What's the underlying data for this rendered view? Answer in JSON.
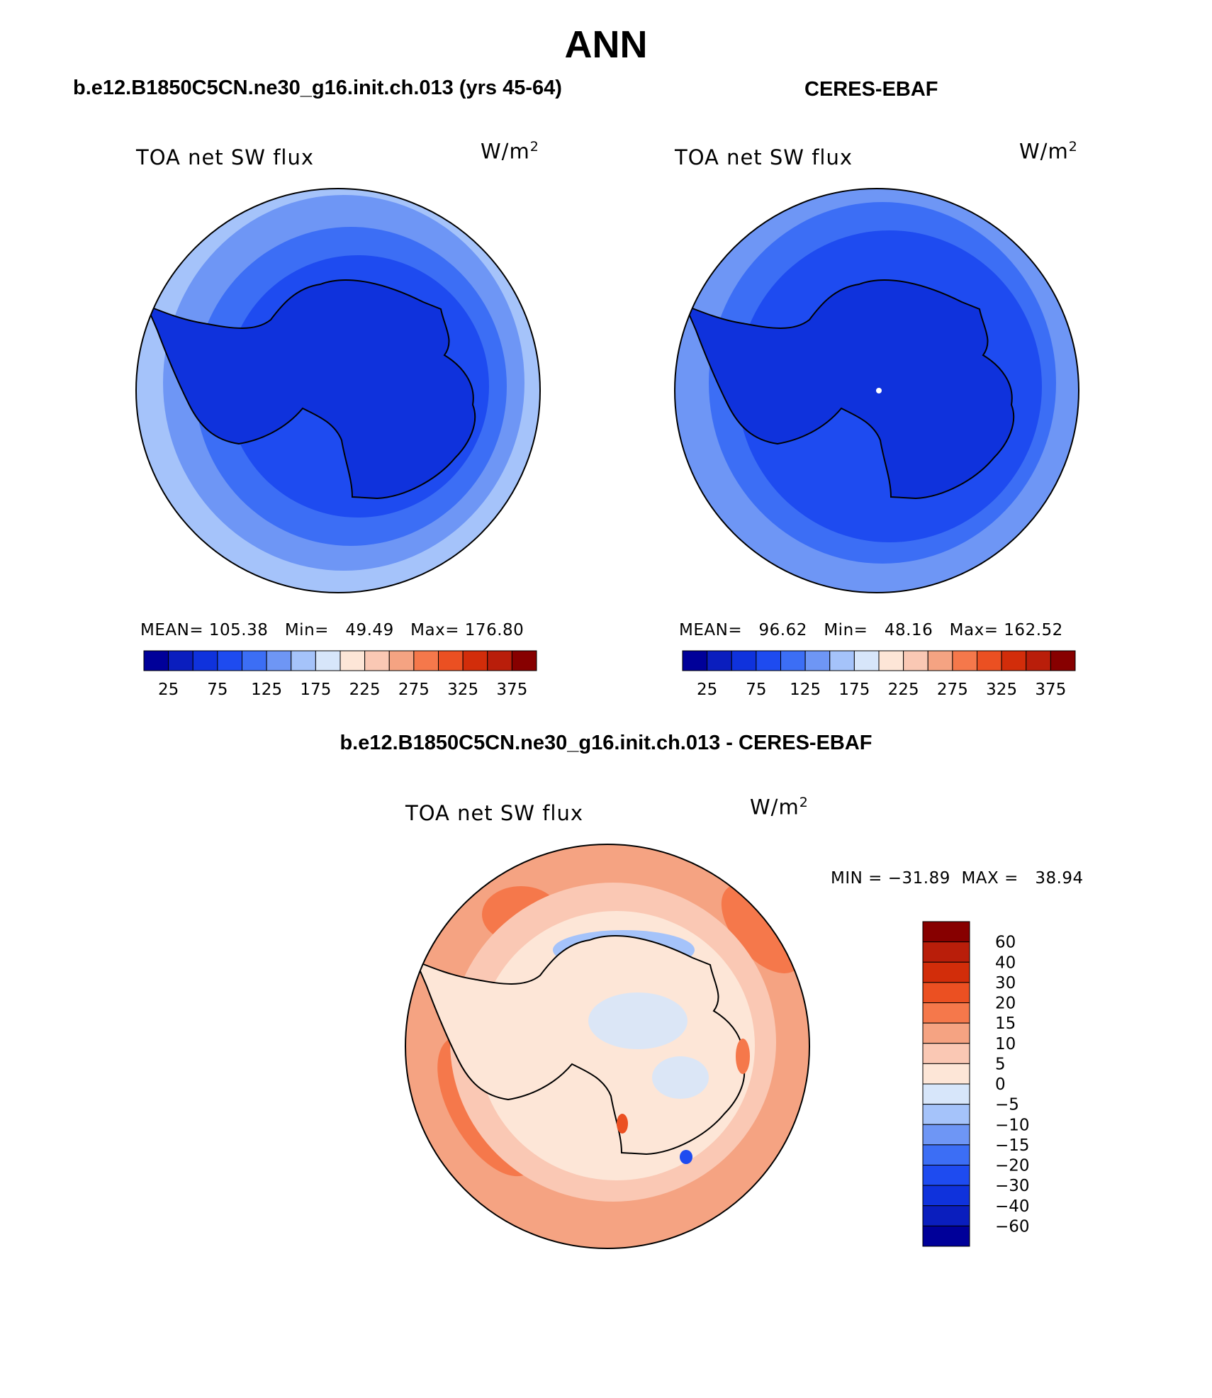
{
  "title": "ANN",
  "left_panel": {
    "subtitle": "b.e12.B1850C5CN.ne30_g16.init.ch.013 (yrs 45-64)",
    "variable": "TOA net SW flux",
    "units": "W/m",
    "units_exp": "2",
    "stats": {
      "mean_label": "MEAN=",
      "mean": "105.38",
      "min_label": "Min=",
      "min": "49.49",
      "max_label": "Max=",
      "max": "176.80"
    }
  },
  "right_panel": {
    "subtitle": "CERES-EBAF",
    "variable": "TOA net SW flux",
    "units": "W/m",
    "units_exp": "2",
    "stats": {
      "mean_label": "MEAN=",
      "mean": "96.62",
      "min_label": "Min=",
      "min": "48.16",
      "max_label": "Max=",
      "max": "162.52"
    }
  },
  "diff_panel": {
    "subtitle": "b.e12.B1850C5CN.ne30_g16.init.ch.013 - CERES-EBAF",
    "variable": "TOA net SW flux",
    "units": "W/m",
    "units_exp": "2",
    "minmax": "MIN = −31.89  MAX =   38.94"
  },
  "abs_colorbar": {
    "labels": [
      "25",
      "75",
      "125",
      "175",
      "225",
      "275",
      "325",
      "375"
    ],
    "colors": [
      "#000099",
      "#0a1ebe",
      "#0f32dc",
      "#1e4bf0",
      "#3c6ef5",
      "#6e96f5",
      "#a5c3fa",
      "#d7e6fa",
      "#fde6d7",
      "#fac8b4",
      "#f5a382",
      "#f5784b",
      "#eb5022",
      "#d22d0a",
      "#b91e0a",
      "#870000"
    ]
  },
  "diff_colorbar": {
    "labels": [
      "60",
      "40",
      "30",
      "20",
      "15",
      "10",
      "5",
      "0",
      "−5",
      "−10",
      "−15",
      "−20",
      "−30",
      "−40",
      "−60"
    ],
    "colors": [
      "#870000",
      "#b91e0a",
      "#d22d0a",
      "#eb5022",
      "#f5784b",
      "#f5a382",
      "#fac8b4",
      "#fde6d7",
      "#d7e6fa",
      "#a5c3fa",
      "#6e96f5",
      "#3c6ef5",
      "#1e4bf0",
      "#0f32dc",
      "#0a1ebe",
      "#000099"
    ]
  },
  "colors": {
    "antarctica_abs": "#0f32dc",
    "antarctica_diff": "#fde6d7",
    "coast": "#000000"
  }
}
